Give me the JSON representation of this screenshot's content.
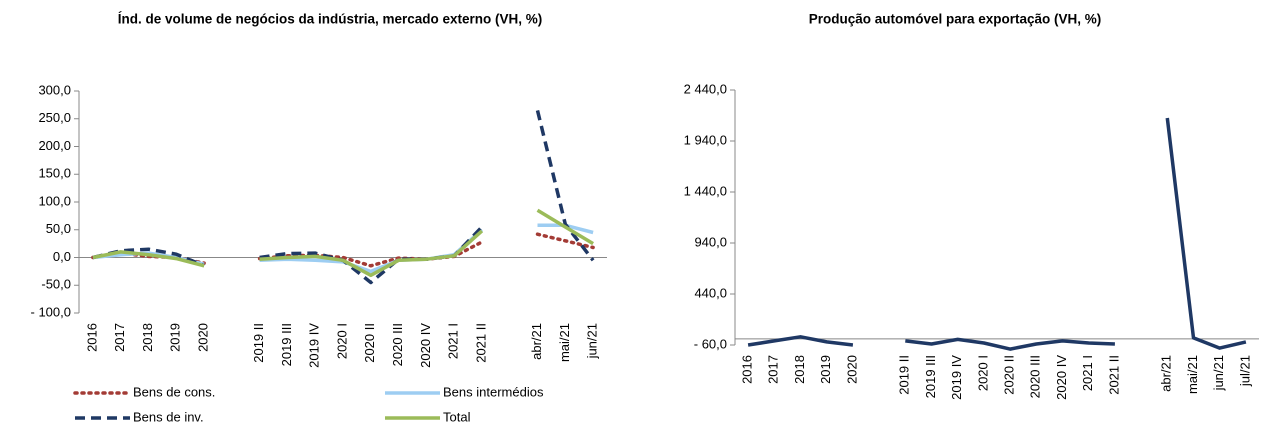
{
  "chart_data": [
    {
      "type": "line",
      "title": "Índ. de volume de negócios da indústria, mercado externo (VH, %)",
      "categories": [
        "2016",
        "2017",
        "2018",
        "2019",
        "2020",
        null,
        "2019 II",
        "2019 III",
        "2019 IV",
        "2020 I",
        "2020 II",
        "2020 III",
        "2020 IV",
        "2021 I",
        "2021 II",
        null,
        "abr/21",
        "mai/21",
        "jun/21"
      ],
      "series": [
        {
          "name": "Bens de cons.",
          "color": "#a33b35",
          "dash": "dotted",
          "values": [
            0,
            8,
            2,
            0,
            -10,
            null,
            -2,
            3,
            4,
            0,
            -15,
            -1,
            -3,
            2,
            28,
            null,
            42,
            30,
            18
          ]
        },
        {
          "name": "Bens intermédios",
          "color": "#9dcdf2",
          "dash": "solid",
          "values": [
            0,
            5,
            8,
            0,
            -12,
            null,
            -5,
            -3,
            -5,
            -8,
            -25,
            -5,
            -3,
            5,
            50,
            null,
            58,
            58,
            45
          ]
        },
        {
          "name": "Bens de inv.",
          "color": "#1f3864",
          "dash": "dashed",
          "values": [
            0,
            12,
            15,
            6,
            -15,
            null,
            0,
            7,
            8,
            -5,
            -45,
            -3,
            -3,
            3,
            55,
            null,
            265,
            60,
            -5
          ]
        },
        {
          "name": "Total",
          "color": "#9bbb59",
          "dash": "solid",
          "values": [
            0,
            10,
            5,
            -2,
            -15,
            null,
            -3,
            0,
            2,
            -5,
            -32,
            -5,
            -3,
            3,
            48,
            null,
            85,
            55,
            25
          ]
        }
      ],
      "ylim": [
        -100,
        300
      ],
      "yticks": [
        {
          "value": -100,
          "label": "- 100,0"
        },
        {
          "value": -50,
          "label": "-50,0"
        },
        {
          "value": 0,
          "label": "0,0"
        },
        {
          "value": 50,
          "label": "50,0"
        },
        {
          "value": 100,
          "label": "100,0"
        },
        {
          "value": 150,
          "label": "150,0"
        },
        {
          "value": 200,
          "label": "200,0"
        },
        {
          "value": 250,
          "label": "250,0"
        },
        {
          "value": 300,
          "label": "300,0"
        }
      ],
      "legend": "bottom"
    },
    {
      "type": "line",
      "title": "Produção automóvel para exportação (VH, %)",
      "categories": [
        "2016",
        "2017",
        "2018",
        "2019",
        "2020",
        null,
        "2019 II",
        "2019 III",
        "2019 IV",
        "2020 I",
        "2020 II",
        "2020 III",
        "2020 IV",
        "2021 I",
        "2021 II",
        null,
        "abr/21",
        "mai/21",
        "jun/21",
        "jul/21"
      ],
      "color": "#1f3864",
      "values": [
        -60,
        -20,
        20,
        -30,
        -60,
        null,
        -20,
        -50,
        -5,
        -40,
        -100,
        -50,
        -20,
        -40,
        -50,
        null,
        2165,
        10,
        -90,
        -30
      ],
      "ylim": [
        -60,
        2440
      ],
      "yticks": [
        {
          "value": -60,
          "label": "- 60,0"
        },
        {
          "value": 440,
          "label": "440,0"
        },
        {
          "value": 940,
          "label": "940,0"
        },
        {
          "value": 1440,
          "label": "1 440,0"
        },
        {
          "value": 1940,
          "label": "1 940,0"
        },
        {
          "value": 2440,
          "label": "2 440,0"
        }
      ]
    }
  ]
}
